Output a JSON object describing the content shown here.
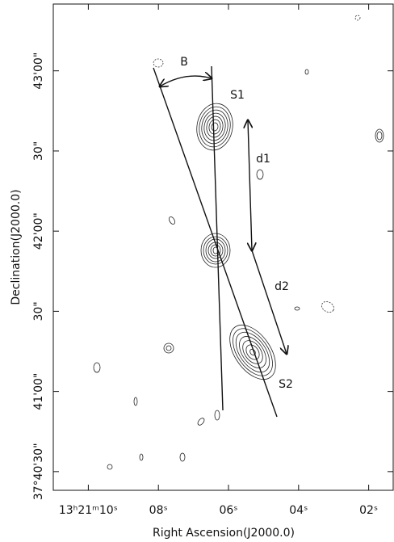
{
  "chart_data": {
    "type": "contour-map",
    "x_label": "Right Ascension(J2000.0)",
    "y_label": "Declination(J2000.0)",
    "xlim": [
      11.0,
      1.3
    ],
    "xticks": [
      {
        "value": 10,
        "label": "13ʰ21ᵐ10ˢ"
      },
      {
        "value": 8,
        "label": "08ˢ"
      },
      {
        "value": 6,
        "label": "06ˢ"
      },
      {
        "value": 4,
        "label": "04ˢ"
      },
      {
        "value": 2,
        "label": "02ˢ"
      }
    ],
    "ylim": [
      135623,
      135805
    ],
    "yticks": [
      {
        "value": 135780,
        "label": "43'00\""
      },
      {
        "value": 135750,
        "label": "30\""
      },
      {
        "value": 135720,
        "label": "42'00\""
      },
      {
        "value": 135690,
        "label": "30\""
      },
      {
        "value": 135660,
        "label": "41'00\""
      },
      {
        "value": 135630,
        "label": "37°40'30\""
      }
    ],
    "annotations": [
      "B",
      "S1",
      "d1",
      "d2",
      "S2"
    ]
  }
}
